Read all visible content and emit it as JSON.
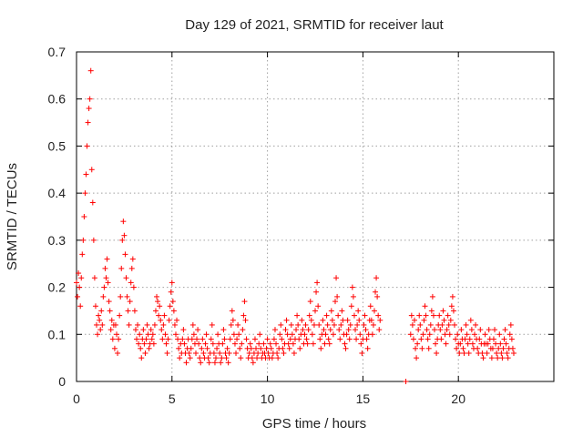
{
  "chart_data": {
    "type": "scatter",
    "title": "Day 129 of 2021, SRMTID for receiver laut",
    "xlabel": "GPS time / hours",
    "ylabel": "SRMTID / TECUs",
    "xlim": [
      0,
      25
    ],
    "ylim": [
      0,
      0.7
    ],
    "xticks": [
      0,
      5,
      10,
      15,
      20
    ],
    "xtick_labels": [
      "0",
      "5",
      "10",
      "15",
      "20"
    ],
    "yticks": [
      0,
      0.1,
      0.2,
      0.3,
      0.4,
      0.5,
      0.6,
      0.7
    ],
    "ytick_labels": [
      "0",
      "0.1",
      "0.2",
      "0.3",
      "0.4",
      "0.5",
      "0.6",
      "0.7"
    ],
    "grid": true,
    "marker": "+",
    "color": "#ff0000",
    "series": [
      {
        "name": "SRMTID",
        "segments": [
          {
            "t_start": 0.0,
            "t_end": 2.0,
            "step": 0.05,
            "values": [
              0.21,
              0.18,
              0.23,
              0.2,
              0.16,
              0.22,
              0.27,
              0.3,
              0.35,
              0.4,
              0.44,
              0.5,
              0.55,
              0.58,
              0.6,
              0.66,
              0.45,
              0.38,
              0.3,
              0.22,
              0.16,
              0.12,
              0.1,
              0.14,
              0.13,
              0.11,
              0.15,
              0.12,
              0.18,
              0.2,
              0.24,
              0.22,
              0.26,
              0.21,
              0.17,
              0.15,
              0.11,
              0.13,
              0.09,
              0.12
            ]
          },
          {
            "t_start": 2.0,
            "t_end": 4.0,
            "step": 0.05,
            "values": [
              0.07,
              0.12,
              0.1,
              0.06,
              0.09,
              0.14,
              0.18,
              0.24,
              0.3,
              0.34,
              0.31,
              0.27,
              0.22,
              0.18,
              0.15,
              0.12,
              0.17,
              0.21,
              0.24,
              0.26,
              0.2,
              0.15,
              0.11,
              0.09,
              0.12,
              0.08,
              0.1,
              0.07,
              0.05,
              0.09,
              0.11,
              0.08,
              0.06,
              0.09,
              0.12,
              0.1,
              0.07,
              0.08,
              0.11,
              0.09
            ]
          },
          {
            "t_start": 4.0,
            "t_end": 6.0,
            "step": 0.05,
            "values": [
              0.1,
              0.08,
              0.12,
              0.15,
              0.18,
              0.17,
              0.14,
              0.16,
              0.13,
              0.11,
              0.09,
              0.12,
              0.14,
              0.1,
              0.08,
              0.06,
              0.09,
              0.13,
              0.16,
              0.19,
              0.21,
              0.17,
              0.15,
              0.12,
              0.1,
              0.13,
              0.09,
              0.07,
              0.05,
              0.08,
              0.06,
              0.09,
              0.11,
              0.08,
              0.06,
              0.04,
              0.07,
              0.09,
              0.06,
              0.05
            ]
          },
          {
            "t_start": 6.0,
            "t_end": 8.0,
            "step": 0.05,
            "values": [
              0.07,
              0.09,
              0.12,
              0.1,
              0.08,
              0.06,
              0.09,
              0.11,
              0.08,
              0.05,
              0.04,
              0.07,
              0.09,
              0.06,
              0.05,
              0.08,
              0.1,
              0.07,
              0.05,
              0.04,
              0.06,
              0.09,
              0.12,
              0.08,
              0.06,
              0.04,
              0.05,
              0.07,
              0.1,
              0.08,
              0.06,
              0.04,
              0.05,
              0.08,
              0.11,
              0.09,
              0.06,
              0.05,
              0.07,
              0.04
            ]
          },
          {
            "t_start": 8.0,
            "t_end": 10.0,
            "step": 0.05,
            "values": [
              0.06,
              0.09,
              0.12,
              0.15,
              0.13,
              0.1,
              0.08,
              0.06,
              0.09,
              0.12,
              0.1,
              0.07,
              0.05,
              0.08,
              0.11,
              0.14,
              0.17,
              0.13,
              0.09,
              0.07,
              0.05,
              0.06,
              0.08,
              0.07,
              0.05,
              0.04,
              0.06,
              0.09,
              0.07,
              0.05,
              0.06,
              0.08,
              0.1,
              0.07,
              0.05,
              0.06,
              0.08,
              0.06,
              0.05,
              0.07
            ]
          },
          {
            "t_start": 10.0,
            "t_end": 12.0,
            "step": 0.05,
            "values": [
              0.09,
              0.06,
              0.05,
              0.08,
              0.07,
              0.05,
              0.06,
              0.09,
              0.11,
              0.08,
              0.06,
              0.05,
              0.07,
              0.1,
              0.12,
              0.09,
              0.07,
              0.06,
              0.08,
              0.11,
              0.13,
              0.1,
              0.08,
              0.07,
              0.09,
              0.12,
              0.1,
              0.08,
              0.06,
              0.09,
              0.11,
              0.14,
              0.12,
              0.09,
              0.07,
              0.1,
              0.13,
              0.11,
              0.08,
              0.1
            ]
          },
          {
            "t_start": 12.0,
            "t_end": 14.0,
            "step": 0.05,
            "values": [
              0.12,
              0.09,
              0.08,
              0.11,
              0.14,
              0.17,
              0.13,
              0.1,
              0.08,
              0.12,
              0.15,
              0.19,
              0.21,
              0.16,
              0.12,
              0.09,
              0.07,
              0.1,
              0.13,
              0.11,
              0.08,
              0.1,
              0.14,
              0.12,
              0.09,
              0.08,
              0.11,
              0.15,
              0.13,
              0.1,
              0.12,
              0.17,
              0.22,
              0.18,
              0.14,
              0.11,
              0.09,
              0.12,
              0.15,
              0.13
            ]
          },
          {
            "t_start": 14.0,
            "t_end": 15.95,
            "step": 0.05,
            "values": [
              0.1,
              0.08,
              0.07,
              0.1,
              0.13,
              0.11,
              0.09,
              0.12,
              0.16,
              0.2,
              0.18,
              0.14,
              0.11,
              0.09,
              0.12,
              0.15,
              0.13,
              0.1,
              0.08,
              0.06,
              0.09,
              0.12,
              0.14,
              0.11,
              0.09,
              0.07,
              0.1,
              0.13,
              0.16,
              0.13,
              0.1,
              0.12,
              0.15,
              0.19,
              0.22,
              0.18,
              0.14,
              0.11,
              0.13
            ]
          },
          {
            "t_start": 17.25,
            "t_end": 17.25,
            "step": 0.05,
            "values": [
              0.0
            ]
          },
          {
            "t_start": 17.5,
            "t_end": 19.5,
            "step": 0.05,
            "values": [
              0.1,
              0.14,
              0.12,
              0.09,
              0.13,
              0.07,
              0.05,
              0.08,
              0.11,
              0.14,
              0.12,
              0.09,
              0.07,
              0.1,
              0.13,
              0.16,
              0.14,
              0.11,
              0.09,
              0.07,
              0.1,
              0.12,
              0.15,
              0.18,
              0.14,
              0.11,
              0.08,
              0.06,
              0.09,
              0.12,
              0.14,
              0.11,
              0.09,
              0.12,
              0.15,
              0.13,
              0.1,
              0.08,
              0.11,
              0.14
            ]
          },
          {
            "t_start": 19.5,
            "t_end": 21.5,
            "step": 0.05,
            "values": [
              0.12,
              0.1,
              0.13,
              0.16,
              0.18,
              0.15,
              0.12,
              0.09,
              0.07,
              0.1,
              0.08,
              0.06,
              0.08,
              0.11,
              0.09,
              0.07,
              0.06,
              0.09,
              0.12,
              0.1,
              0.08,
              0.06,
              0.09,
              0.13,
              0.11,
              0.08,
              0.07,
              0.1,
              0.12,
              0.09,
              0.07,
              0.06,
              0.09,
              0.11,
              0.08,
              0.06,
              0.05,
              0.08,
              0.1,
              0.08
            ]
          },
          {
            "t_start": 21.5,
            "t_end": 22.9,
            "step": 0.05,
            "values": [
              0.06,
              0.08,
              0.11,
              0.09,
              0.07,
              0.05,
              0.07,
              0.09,
              0.11,
              0.08,
              0.06,
              0.05,
              0.07,
              0.1,
              0.08,
              0.06,
              0.05,
              0.07,
              0.09,
              0.11,
              0.08,
              0.06,
              0.05,
              0.07,
              0.1,
              0.12,
              0.09,
              0.07,
              0.06
            ]
          }
        ]
      }
    ]
  }
}
